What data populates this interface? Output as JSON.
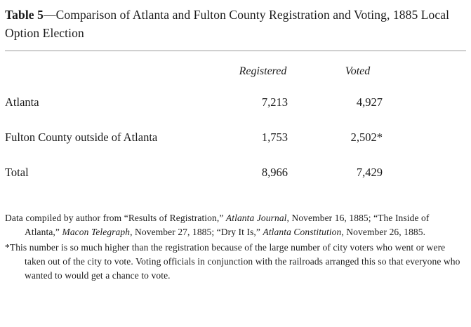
{
  "title": {
    "label": "Table 5",
    "rest": "—Comparison of Atlanta and Fulton County Registration and Voting, 1885 Local Option Election"
  },
  "table": {
    "columns": [
      "Registered",
      "Voted"
    ],
    "rows": [
      {
        "label": "Atlanta",
        "registered": "7,213",
        "voted": "4,927"
      },
      {
        "label": "Fulton County outside of Atlanta",
        "registered": "1,753",
        "voted": "2,502*"
      },
      {
        "label": "Total",
        "registered": "8,966",
        "voted": "7,429"
      }
    ]
  },
  "chart_data": {
    "type": "table",
    "title": "Table 5—Comparison of Atlanta and Fulton County Registration and Voting, 1885 Local Option Election",
    "categories": [
      "Atlanta",
      "Fulton County outside of Atlanta",
      "Total"
    ],
    "series": [
      {
        "name": "Registered",
        "values": [
          7213,
          1753,
          8966
        ]
      },
      {
        "name": "Voted",
        "values": [
          4927,
          2502,
          7429
        ]
      }
    ]
  },
  "notes": {
    "source": {
      "segments": [
        {
          "text": "Data compiled by author from “Results of Registration,” ",
          "italic": false
        },
        {
          "text": "Atlanta Journal",
          "italic": true
        },
        {
          "text": ", November 16, 1885; “The Inside of Atlanta,” ",
          "italic": false
        },
        {
          "text": "Macon Telegraph",
          "italic": true
        },
        {
          "text": ", November 27, 1885; “Dry It Is,” ",
          "italic": false
        },
        {
          "text": "Atlanta Constitution",
          "italic": true
        },
        {
          "text": ", November 26, 1885.",
          "italic": false
        }
      ]
    },
    "footnote": {
      "segments": [
        {
          "text": "*This number is so much higher than the registration because of the large number of city voters who went or were taken out of the city to vote. Voting officials in conjunction with the railroads arranged this so that everyone who wanted to would get a chance to vote.",
          "italic": false
        }
      ]
    }
  }
}
